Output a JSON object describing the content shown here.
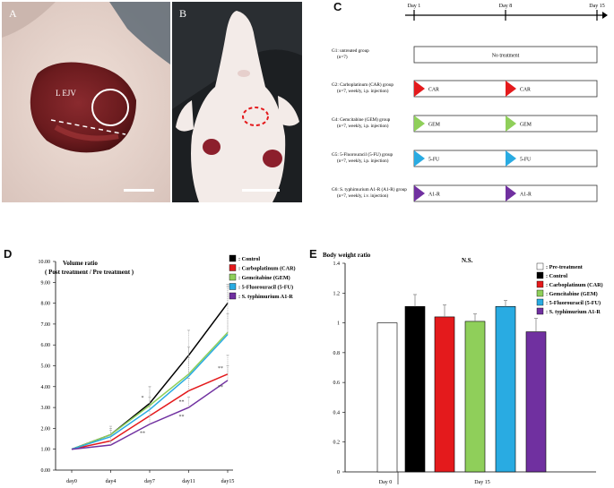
{
  "panels": {
    "a": {
      "letter": "A",
      "label": "L EJV"
    },
    "b": {
      "letter": "B"
    },
    "c": {
      "letter": "C"
    },
    "d": {
      "letter": "D"
    },
    "e": {
      "letter": "E"
    }
  },
  "timeline": {
    "days": [
      "Day 1",
      "Day 8",
      "Day 15"
    ],
    "groups": [
      {
        "title": "G1: untreated group",
        "detail": "(n=7)",
        "mode": "bar",
        "text": "No treatment",
        "color": "#ffffff"
      },
      {
        "title": "G2: Carboplatinum (CAR) group",
        "detail": "(n=7, weekly, i.p. injection)",
        "mode": "marks",
        "text": "CAR",
        "color": "#e41a1c"
      },
      {
        "title": "G4: Gemcitabine (GEM) group",
        "detail": "(n=7, weekly, i.p. injection)",
        "mode": "marks",
        "text": "GEM",
        "color": "#8fcf5a"
      },
      {
        "title": "G5: 5-Fluorouracil (5-FU) group",
        "detail": "(n=7, weekly, i.p. injection)",
        "mode": "marks",
        "text": "5-FU",
        "color": "#29abe2"
      },
      {
        "title": "G6: S. typhimurium A1-R (A1-R) group",
        "detail": "(n=7, weekly, i.v. injection)",
        "mode": "marks",
        "text": "A1-R",
        "color": "#7030a0"
      }
    ]
  },
  "chart_data": [
    {
      "type": "line",
      "title": "Volume ratio",
      "subtitle": "( Post treatment / Pre treatment )",
      "categories": [
        "day0",
        "day4",
        "day7",
        "day11",
        "day15"
      ],
      "ylim": [
        0,
        10
      ],
      "ytick_labels": [
        "0.00",
        "1.00",
        "2.00",
        "3.00",
        "4.00",
        "5.00",
        "6.00",
        "7.00",
        "8.00",
        "9.00",
        "10.00"
      ],
      "legend_position": "top-right",
      "series": [
        {
          "name": ": Control",
          "color": "#000000",
          "values": [
            1.0,
            1.7,
            3.2,
            5.5,
            8.0
          ],
          "errors": [
            0,
            0.4,
            0.8,
            1.2,
            0.9
          ]
        },
        {
          "name": ": Carboplatinum (CAR)",
          "color": "#e41a1c",
          "values": [
            1.0,
            1.4,
            2.6,
            3.8,
            4.6
          ],
          "errors": [
            0,
            0.3,
            0.5,
            0.6,
            0.9
          ]
        },
        {
          "name": ": Gemcitabine (GEM)",
          "color": "#8fcf5a",
          "values": [
            1.0,
            1.7,
            3.1,
            4.6,
            6.6
          ],
          "errors": [
            0,
            0.3,
            0.9,
            1.3,
            2.2
          ]
        },
        {
          "name": ": 5-Fluorouracil (5-FU)",
          "color": "#29abe2",
          "values": [
            1.0,
            1.6,
            2.9,
            4.5,
            6.5
          ],
          "errors": [
            0,
            0.3,
            0.6,
            0.9,
            1.0
          ]
        },
        {
          "name": ": S. typhimurium A1-R",
          "color": "#7030a0",
          "values": [
            1.0,
            1.2,
            2.2,
            3.0,
            4.3
          ],
          "errors": [
            0,
            0.2,
            0.4,
            0.5,
            0.7
          ]
        }
      ],
      "annotations": [
        {
          "text": "*",
          "x": "day7",
          "y": 3.4
        },
        {
          "text": "**",
          "x": "day7",
          "y": 1.7
        },
        {
          "text": "**",
          "x": "day11",
          "y": 3.2
        },
        {
          "text": "**",
          "x": "day11",
          "y": 2.5
        },
        {
          "text": "**",
          "x": "day15",
          "y": 4.8
        },
        {
          "text": "**",
          "x": "day15",
          "y": 3.9
        }
      ]
    },
    {
      "type": "bar",
      "title": "Body weight ratio",
      "annotation": "N.S.",
      "ylim": [
        0,
        1.4
      ],
      "ytick_labels": [
        "0",
        "0.2",
        "0.4",
        "0.6",
        "0.8",
        "1",
        "1.2",
        "1.4"
      ],
      "xlabels": [
        "Day 0",
        "Day 15"
      ],
      "legend_position": "top-right",
      "bars": [
        {
          "name": ": Pre-treatment",
          "color": "#ffffff",
          "value": 1.0,
          "error": 0
        },
        {
          "name": ": Control",
          "color": "#000000",
          "value": 1.11,
          "error": 0.08
        },
        {
          "name": ": Carboplatinum (CAR)",
          "color": "#e41a1c",
          "value": 1.04,
          "error": 0.08
        },
        {
          "name": ": Gemcitabine (GEM)",
          "color": "#8fcf5a",
          "value": 1.01,
          "error": 0.05
        },
        {
          "name": ": 5-Fluorouracil (5-FU)",
          "color": "#29abe2",
          "value": 1.11,
          "error": 0.04
        },
        {
          "name": ": S. typhimurium A1-R",
          "color": "#7030a0",
          "value": 0.94,
          "error": 0.09
        }
      ]
    }
  ]
}
